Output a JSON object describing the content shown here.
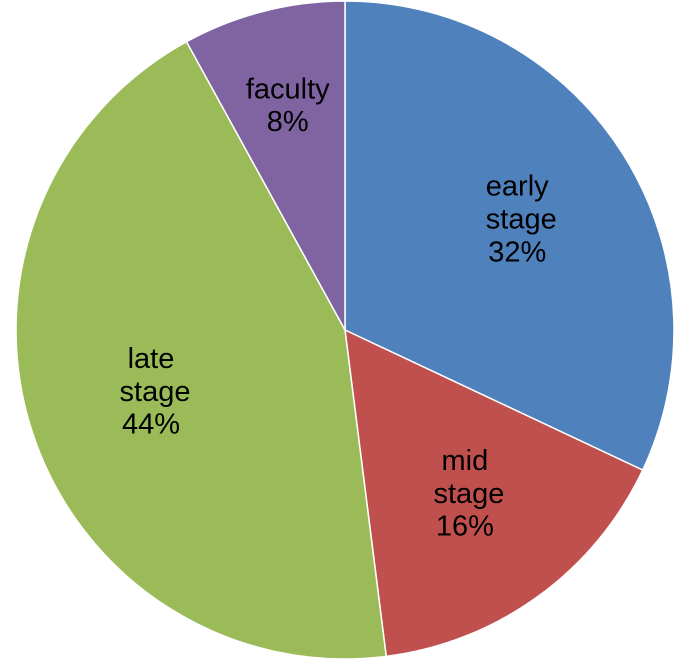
{
  "chart_data": {
    "type": "pie",
    "categories": [
      "early stage",
      "mid stage",
      "late stage",
      "faculty"
    ],
    "values": [
      32,
      16,
      44,
      8
    ],
    "value_labels": [
      "32%",
      "16%",
      "44%",
      "8%"
    ],
    "colors": [
      "#4f81bd",
      "#c0504d",
      "#9bbb59",
      "#8064a2"
    ]
  }
}
